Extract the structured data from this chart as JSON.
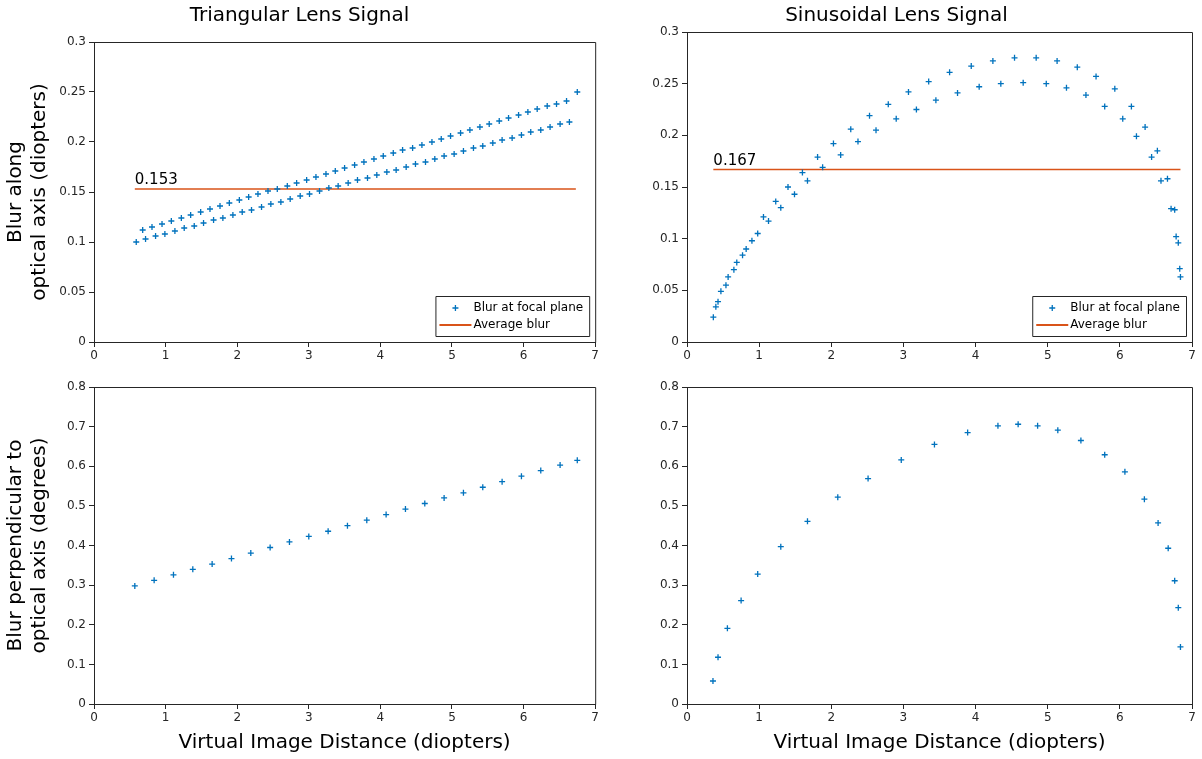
{
  "chart_data": [
    {
      "type": "scatter",
      "title": "Triangular Lens Signal",
      "ylabel": "Blur along\noptical axis (diopters)",
      "xlim": [
        0,
        7
      ],
      "xticks": [
        0,
        1,
        2,
        3,
        4,
        5,
        6,
        7
      ],
      "ylim": [
        0,
        0.3
      ],
      "yticks": [
        0,
        0.05,
        0.1,
        0.15,
        0.2,
        0.25,
        0.3
      ],
      "grid": false,
      "legend": "bottom right",
      "marker": "cross",
      "annotations": [
        {
          "text": "0.153",
          "x": 0.57,
          "y": 0.153
        }
      ],
      "series": [
        {
          "name": "Blur at focal plane",
          "color": "#0072bd",
          "x": [
            0.59,
            0.68,
            0.72,
            0.81,
            0.86,
            0.95,
            0.99,
            1.08,
            1.13,
            1.22,
            1.26,
            1.35,
            1.4,
            1.49,
            1.53,
            1.62,
            1.67,
            1.76,
            1.8,
            1.89,
            1.94,
            2.03,
            2.07,
            2.16,
            2.2,
            2.29,
            2.34,
            2.43,
            2.47,
            2.56,
            2.61,
            2.7,
            2.74,
            2.83,
            2.88,
            2.97,
            3.01,
            3.1,
            3.15,
            3.24,
            3.28,
            3.37,
            3.41,
            3.5,
            3.55,
            3.64,
            3.68,
            3.77,
            3.82,
            3.91,
            3.95,
            4.04,
            4.09,
            4.18,
            4.22,
            4.31,
            4.36,
            4.45,
            4.49,
            4.58,
            4.63,
            4.72,
            4.76,
            4.85,
            4.89,
            4.98,
            5.03,
            5.12,
            5.16,
            5.25,
            5.3,
            5.39,
            5.43,
            5.52,
            5.57,
            5.66,
            5.7,
            5.79,
            5.84,
            5.93,
            5.97,
            6.06,
            6.1,
            6.19,
            6.24,
            6.33,
            6.37,
            6.46,
            6.51,
            6.6,
            6.64,
            6.75
          ],
          "values": [
            0.1,
            0.112,
            0.103,
            0.115,
            0.106,
            0.118,
            0.108,
            0.121,
            0.111,
            0.124,
            0.114,
            0.127,
            0.116,
            0.13,
            0.119,
            0.133,
            0.122,
            0.136,
            0.124,
            0.139,
            0.127,
            0.142,
            0.13,
            0.145,
            0.132,
            0.148,
            0.135,
            0.151,
            0.138,
            0.153,
            0.14,
            0.156,
            0.143,
            0.159,
            0.146,
            0.162,
            0.148,
            0.165,
            0.151,
            0.168,
            0.154,
            0.171,
            0.156,
            0.174,
            0.159,
            0.177,
            0.162,
            0.18,
            0.164,
            0.183,
            0.167,
            0.186,
            0.17,
            0.189,
            0.172,
            0.192,
            0.175,
            0.194,
            0.178,
            0.197,
            0.18,
            0.2,
            0.183,
            0.203,
            0.186,
            0.206,
            0.188,
            0.209,
            0.191,
            0.212,
            0.194,
            0.215,
            0.196,
            0.218,
            0.199,
            0.221,
            0.202,
            0.224,
            0.204,
            0.227,
            0.207,
            0.23,
            0.21,
            0.233,
            0.212,
            0.236,
            0.215,
            0.238,
            0.218,
            0.241,
            0.22,
            0.25
          ]
        },
        {
          "name": "Average blur",
          "type": "line",
          "marker": "none",
          "color": "#d95319",
          "x": [
            0.57,
            6.73
          ],
          "values": [
            0.153,
            0.153
          ]
        }
      ]
    },
    {
      "type": "scatter",
      "title": "Sinusoidal Lens Signal",
      "xlim": [
        0,
        7
      ],
      "xticks": [
        0,
        1,
        2,
        3,
        4,
        5,
        6,
        7
      ],
      "ylim": [
        0,
        0.3
      ],
      "yticks": [
        0,
        0.05,
        0.1,
        0.15,
        0.2,
        0.25,
        0.3
      ],
      "grid": false,
      "legend": "bottom right",
      "marker": "cross",
      "annotations": [
        {
          "text": "0.167",
          "x": 0.365,
          "y": 0.167
        }
      ],
      "series": [
        {
          "name": "Blur at focal plane",
          "color": "#0072bd",
          "x": [
            0.365,
            0.4,
            0.43,
            0.47,
            0.54,
            0.57,
            0.65,
            0.69,
            0.77,
            0.82,
            0.9,
            0.98,
            1.06,
            1.13,
            1.23,
            1.3,
            1.4,
            1.49,
            1.6,
            1.67,
            1.81,
            1.88,
            2.03,
            2.13,
            2.27,
            2.37,
            2.53,
            2.62,
            2.79,
            2.9,
            3.07,
            3.18,
            3.35,
            3.45,
            3.64,
            3.75,
            3.94,
            4.05,
            4.24,
            4.35,
            4.54,
            4.66,
            4.84,
            4.98,
            5.13,
            5.26,
            5.41,
            5.53,
            5.67,
            5.79,
            5.93,
            6.04,
            6.16,
            6.23,
            6.35,
            6.44,
            6.52,
            6.57,
            6.66,
            6.71,
            6.76,
            6.78,
            6.81,
            6.83,
            6.84
          ],
          "values": [
            0.024,
            0.034,
            0.039,
            0.049,
            0.055,
            0.063,
            0.07,
            0.077,
            0.084,
            0.09,
            0.098,
            0.105,
            0.121,
            0.117,
            0.136,
            0.13,
            0.15,
            0.143,
            0.164,
            0.156,
            0.179,
            0.169,
            0.192,
            0.181,
            0.206,
            0.194,
            0.219,
            0.205,
            0.23,
            0.216,
            0.242,
            0.225,
            0.252,
            0.234,
            0.261,
            0.241,
            0.267,
            0.247,
            0.272,
            0.25,
            0.275,
            0.251,
            0.275,
            0.25,
            0.272,
            0.246,
            0.266,
            0.239,
            0.257,
            0.228,
            0.245,
            0.216,
            0.228,
            0.199,
            0.208,
            0.179,
            0.185,
            0.156,
            0.158,
            0.129,
            0.128,
            0.102,
            0.096,
            0.071,
            0.063
          ]
        },
        {
          "name": "Average blur",
          "type": "line",
          "marker": "none",
          "color": "#d95319",
          "x": [
            0.365,
            6.84
          ],
          "values": [
            0.167,
            0.167
          ]
        }
      ]
    },
    {
      "type": "scatter",
      "xlabel": "Virtual Image Distance (diopters)",
      "ylabel": "Blur perpendicular to\noptical axis (degrees)",
      "xlim": [
        0,
        7
      ],
      "xticks": [
        0,
        1,
        2,
        3,
        4,
        5,
        6,
        7
      ],
      "ylim": [
        0,
        0.8
      ],
      "yticks": [
        0,
        0.1,
        0.2,
        0.3,
        0.4,
        0.5,
        0.6,
        0.7,
        0.8
      ],
      "grid": false,
      "marker": "cross",
      "series": [
        {
          "color": "#0072bd",
          "x": [
            0.57,
            0.84,
            1.11,
            1.38,
            1.65,
            1.92,
            2.19,
            2.46,
            2.73,
            3.0,
            3.27,
            3.54,
            3.81,
            4.08,
            4.35,
            4.62,
            4.89,
            5.16,
            5.43,
            5.7,
            5.97,
            6.24,
            6.51,
            6.75
          ],
          "values": [
            0.298,
            0.312,
            0.326,
            0.34,
            0.353,
            0.367,
            0.381,
            0.395,
            0.409,
            0.423,
            0.436,
            0.45,
            0.464,
            0.478,
            0.492,
            0.506,
            0.52,
            0.533,
            0.547,
            0.561,
            0.575,
            0.589,
            0.603,
            0.615
          ]
        }
      ]
    },
    {
      "type": "scatter",
      "xlabel": "Virtual Image Distance (diopters)",
      "xlim": [
        0,
        7
      ],
      "xticks": [
        0,
        1,
        2,
        3,
        4,
        5,
        6,
        7
      ],
      "ylim": [
        0,
        0.8
      ],
      "yticks": [
        0,
        0.1,
        0.2,
        0.3,
        0.4,
        0.5,
        0.6,
        0.7,
        0.8
      ],
      "grid": false,
      "marker": "cross",
      "series": [
        {
          "color": "#0072bd",
          "x": [
            0.36,
            0.43,
            0.56,
            0.75,
            0.98,
            1.3,
            1.67,
            2.09,
            2.51,
            2.97,
            3.43,
            3.89,
            4.31,
            4.59,
            4.86,
            5.14,
            5.46,
            5.79,
            6.07,
            6.34,
            6.53,
            6.67,
            6.76,
            6.81,
            6.84
          ],
          "values": [
            0.058,
            0.118,
            0.191,
            0.261,
            0.328,
            0.397,
            0.461,
            0.522,
            0.569,
            0.616,
            0.655,
            0.685,
            0.702,
            0.706,
            0.702,
            0.691,
            0.665,
            0.629,
            0.586,
            0.517,
            0.457,
            0.393,
            0.311,
            0.243,
            0.144
          ]
        }
      ]
    }
  ]
}
